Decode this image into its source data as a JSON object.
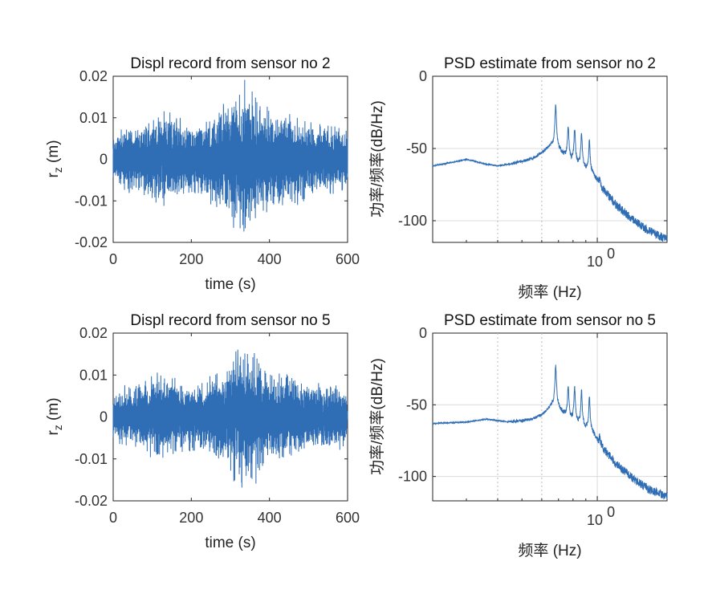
{
  "figure": {
    "line_color": "#2f6db5"
  },
  "chart_data": [
    {
      "id": "time1",
      "type": "line",
      "title": "Displ record from sensor no 2",
      "xlabel": "time (s)",
      "ylabel_main": "r",
      "ylabel_sub": "z",
      "ylabel_unit": " (m)",
      "xlim": [
        0,
        600
      ],
      "ylim": [
        -0.02,
        0.02
      ],
      "xticks": [
        0,
        200,
        400,
        600
      ],
      "xtick_labels": [
        "0",
        "200",
        "400",
        "600"
      ],
      "yticks": [
        -0.02,
        -0.01,
        0,
        0.01,
        0.02
      ],
      "ytick_labels": [
        "-0.02",
        "-0.01",
        "0",
        "0.01",
        "0.02"
      ],
      "envelope": {
        "t": [
          0,
          20,
          40,
          60,
          80,
          100,
          120,
          140,
          160,
          180,
          200,
          220,
          240,
          260,
          280,
          300,
          320,
          340,
          360,
          380,
          400,
          420,
          440,
          460,
          480,
          500,
          520,
          540,
          560,
          580,
          600
        ],
        "amp": [
          0.006,
          0.0075,
          0.008,
          0.0085,
          0.009,
          0.0095,
          0.0115,
          0.012,
          0.0105,
          0.009,
          0.008,
          0.0085,
          0.0095,
          0.0115,
          0.0125,
          0.015,
          0.017,
          0.0185,
          0.017,
          0.0145,
          0.012,
          0.0115,
          0.013,
          0.0115,
          0.0105,
          0.01,
          0.009,
          0.0085,
          0.0085,
          0.008,
          0.007
        ]
      },
      "samples": 1600,
      "seed": 11
    },
    {
      "id": "psd1",
      "type": "line",
      "title": "PSD estimate from sensor no 2",
      "xlabel": "频率 (Hz)",
      "ylabel": "功率/频率(dB/Hz)",
      "xscale": "log",
      "xlim": [
        0.22,
        1.9
      ],
      "ylim": [
        -115,
        0
      ],
      "yticks": [
        0,
        -50,
        -100
      ],
      "ytick_labels": [
        "0",
        "-50",
        "-100"
      ],
      "xticks": [
        1
      ],
      "xtick_base": "10",
      "xtick_exp": "0",
      "minor_xgrid": [
        0.4,
        0.6
      ],
      "major_xgrid": [
        1
      ],
      "ygrid": [
        -50,
        -100
      ],
      "baseline": {
        "f": [
          0.22,
          0.3,
          0.36,
          0.4,
          0.44,
          0.5,
          0.55,
          0.6,
          0.63,
          0.66
        ],
        "db": [
          -62,
          -57.5,
          -61,
          -62,
          -61,
          -59,
          -57,
          -53,
          -50,
          -47
        ]
      },
      "peaks": [
        {
          "f": 0.682,
          "db": -19
        },
        {
          "f": 0.765,
          "db": -34
        },
        {
          "f": 0.812,
          "db": -36
        },
        {
          "f": 0.865,
          "db": -39
        },
        {
          "f": 0.93,
          "db": -44
        },
        {
          "f": 1.02,
          "db": -71
        }
      ],
      "tail": {
        "f": [
          0.68,
          0.75,
          0.85,
          0.95,
          1.05,
          1.2,
          1.4,
          1.6,
          1.9
        ],
        "db": [
          -48,
          -55,
          -60,
          -66,
          -78,
          -90,
          -100,
          -107,
          -113
        ]
      },
      "seed": 5
    },
    {
      "id": "time2",
      "type": "line",
      "title": "Displ record from sensor no 5",
      "xlabel": "time (s)",
      "ylabel_main": "r",
      "ylabel_sub": "z",
      "ylabel_unit": " (m)",
      "xlim": [
        0,
        600
      ],
      "ylim": [
        -0.02,
        0.02
      ],
      "xticks": [
        0,
        200,
        400,
        600
      ],
      "xtick_labels": [
        "0",
        "200",
        "400",
        "600"
      ],
      "yticks": [
        -0.02,
        -0.01,
        0,
        0.01,
        0.02
      ],
      "ytick_labels": [
        "-0.02",
        "-0.01",
        "0",
        "0.01",
        "0.02"
      ],
      "envelope": {
        "t": [
          0,
          20,
          40,
          60,
          80,
          100,
          120,
          140,
          160,
          180,
          200,
          220,
          240,
          260,
          280,
          300,
          320,
          340,
          360,
          380,
          400,
          420,
          440,
          460,
          480,
          500,
          520,
          540,
          560,
          580,
          600
        ],
        "amp": [
          0.006,
          0.007,
          0.0075,
          0.008,
          0.0085,
          0.0095,
          0.0105,
          0.0105,
          0.0095,
          0.0085,
          0.008,
          0.0085,
          0.009,
          0.0105,
          0.0115,
          0.0135,
          0.016,
          0.0175,
          0.016,
          0.013,
          0.011,
          0.0105,
          0.0115,
          0.0105,
          0.0095,
          0.009,
          0.0085,
          0.008,
          0.008,
          0.0075,
          0.0065
        ]
      },
      "samples": 1600,
      "seed": 23
    },
    {
      "id": "psd2",
      "type": "line",
      "title": "PSD estimate from sensor no 5",
      "xlabel": "频率 (Hz)",
      "ylabel": "功率/频率(dB/Hz)",
      "xscale": "log",
      "xlim": [
        0.22,
        1.9
      ],
      "ylim": [
        -117,
        0
      ],
      "yticks": [
        0,
        -50,
        -100
      ],
      "ytick_labels": [
        "0",
        "-50",
        "-100"
      ],
      "xticks": [
        1
      ],
      "xtick_base": "10",
      "xtick_exp": "0",
      "minor_xgrid": [
        0.4,
        0.6
      ],
      "major_xgrid": [
        1
      ],
      "ygrid": [
        -50,
        -100
      ],
      "baseline": {
        "f": [
          0.22,
          0.3,
          0.36,
          0.4,
          0.44,
          0.5,
          0.55,
          0.6,
          0.63,
          0.66
        ],
        "db": [
          -63,
          -62,
          -60,
          -61,
          -62,
          -61,
          -60,
          -57,
          -54,
          -50
        ]
      },
      "peaks": [
        {
          "f": 0.682,
          "db": -23
        },
        {
          "f": 0.765,
          "db": -37
        },
        {
          "f": 0.812,
          "db": -38
        },
        {
          "f": 0.865,
          "db": -40
        },
        {
          "f": 0.93,
          "db": -44
        },
        {
          "f": 1.02,
          "db": -72
        }
      ],
      "tail": {
        "f": [
          0.68,
          0.75,
          0.85,
          0.95,
          1.05,
          1.2,
          1.4,
          1.6,
          1.9
        ],
        "db": [
          -50,
          -57,
          -62,
          -68,
          -80,
          -92,
          -102,
          -109,
          -114
        ]
      },
      "seed": 9
    }
  ]
}
